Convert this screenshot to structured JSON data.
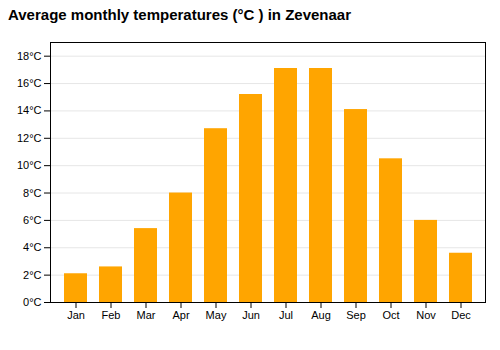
{
  "chart_data": {
    "type": "bar",
    "title": "Average monthly temperatures (°C ) in Zevenaar",
    "categories": [
      "Jan",
      "Feb",
      "Mar",
      "Apr",
      "May",
      "Jun",
      "Jul",
      "Aug",
      "Sep",
      "Oct",
      "Nov",
      "Dec"
    ],
    "values": [
      2.1,
      2.6,
      5.4,
      8.0,
      12.7,
      15.2,
      17.1,
      17.1,
      14.1,
      10.5,
      6.0,
      3.6
    ],
    "color": "#FFA500",
    "ylim": [
      0,
      19
    ],
    "yticks": [
      {
        "value": 0,
        "label": "0°C"
      },
      {
        "value": 2,
        "label": "2°C"
      },
      {
        "value": 4,
        "label": "4°C"
      },
      {
        "value": 6,
        "label": "6°C"
      },
      {
        "value": 8,
        "label": "8°C"
      },
      {
        "value": 10,
        "label": "10°C"
      },
      {
        "value": 12,
        "label": "12°C"
      },
      {
        "value": 14,
        "label": "14°C"
      },
      {
        "value": 16,
        "label": "16°C"
      },
      {
        "value": 18,
        "label": "18°C"
      }
    ],
    "grid": true
  }
}
